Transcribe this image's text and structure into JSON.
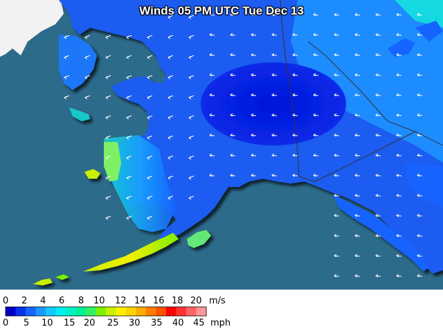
{
  "map": {
    "title": "Winds 05 PM UTC Tue Dec 13",
    "variable": "wind speed",
    "colors": {
      "ocean": "#2d6b8a",
      "foreign_land": "#f2f2f2",
      "border": "#333333",
      "arrow": "#ffffff"
    }
  },
  "legend": {
    "ms_unit": "m/s",
    "mph_unit": "mph",
    "ms_ticks": [
      "0",
      "2",
      "4",
      "6",
      "8",
      "10",
      "12",
      "14",
      "16",
      "18",
      "20"
    ],
    "mph_ticks": [
      "0",
      "5",
      "10",
      "15",
      "20",
      "25",
      "30",
      "35",
      "40",
      "45"
    ],
    "colors": [
      "#0000c8",
      "#0a32e6",
      "#1464ff",
      "#1e96ff",
      "#14c8ff",
      "#00f0f0",
      "#00f0c8",
      "#00f096",
      "#32f064",
      "#7df000",
      "#c8f000",
      "#fff000",
      "#ffd200",
      "#ffaa00",
      "#ff7d00",
      "#ff5000",
      "#ff0000",
      "#ff3232",
      "#ff6464",
      "#ff9696"
    ]
  }
}
